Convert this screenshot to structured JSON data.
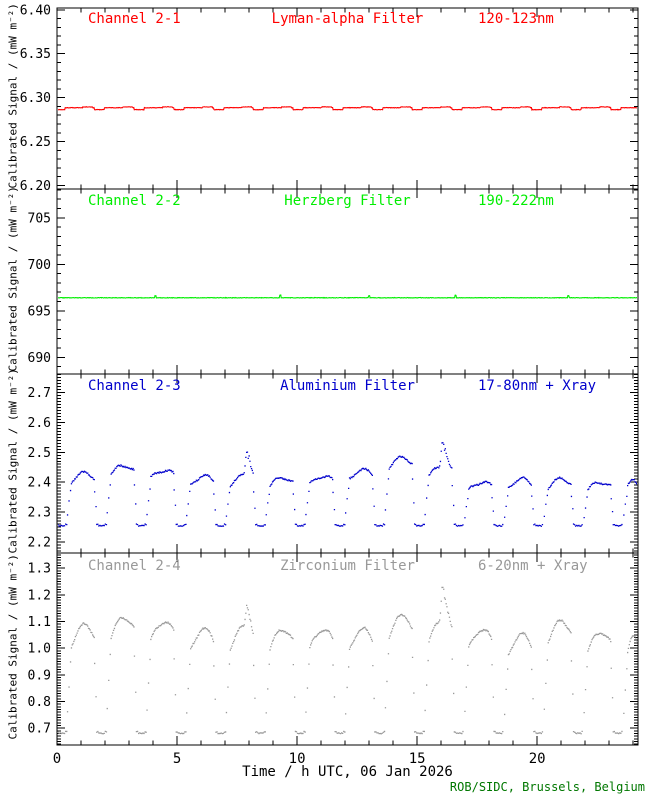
{
  "figure": {
    "background": "#ffffff",
    "axis_color": "#000000"
  },
  "xaxis": {
    "label": "Time / h UTC, 06 Jan 2026",
    "lim": [
      0,
      24.2
    ],
    "ticks": [
      0,
      5,
      10,
      15,
      20
    ],
    "minor_step": 1
  },
  "footer": {
    "text": "ROB/SIDC, Brussels, Belgium",
    "color": "#007700"
  },
  "chart_data": [
    {
      "type": "line",
      "channel": "Channel 2-1",
      "filter": "Lyman-alpha Filter",
      "range": "120-123nm",
      "color": "#ff0000",
      "ylabel": "Calibrated Signal / (mW m⁻²)",
      "ylim": [
        6.196,
        6.402
      ],
      "yticks": [
        6.2,
        6.25,
        6.3,
        6.35,
        6.4
      ],
      "ytick_decimals": 2,
      "yminor_step": 0.01,
      "series": {
        "seed": 11,
        "base": 6.2885,
        "noise": 0.0005,
        "eclipse_first": 0.2,
        "eclipse_period": 1.655,
        "bump": 0.0009,
        "bump_window": [
          -0.78,
          -0.36
        ],
        "dip": 0.0022,
        "dip_window": [
          -0.3,
          0.12
        ],
        "spikes": []
      }
    },
    {
      "type": "line",
      "channel": "Channel 2-2",
      "filter": "Herzberg Filter",
      "range": "190-222nm",
      "color": "#00ee00",
      "ylabel": "Calibrated Signal / (mW m⁻²)",
      "ylim": [
        688.2,
        708.1
      ],
      "yticks": [
        690,
        695,
        700,
        705
      ],
      "ytick_decimals": 0,
      "yminor_step": 1,
      "series": {
        "seed": 22,
        "base": 696.4,
        "noise": 0.05,
        "spikes": [
          {
            "t": 4.1,
            "amp": 0.22
          },
          {
            "t": 9.3,
            "amp": 0.28
          },
          {
            "t": 13.0,
            "amp": 0.22
          },
          {
            "t": 16.6,
            "amp": 0.26
          },
          {
            "t": 21.3,
            "amp": 0.22
          }
        ]
      }
    },
    {
      "type": "scatter",
      "channel": "Channel 2-3",
      "filter": "Aluminium Filter",
      "range": "17-80nm + Xray",
      "color": "#0000cc",
      "ylabel": "Calibrated Signal / (mW m⁻²)",
      "ylim": [
        2.163,
        2.762
      ],
      "yticks": [
        2.2,
        2.3,
        2.4,
        2.5,
        2.6,
        2.7
      ],
      "ytick_decimals": 1,
      "yminor_step": 0.01,
      "series": {
        "seed": 33,
        "low": 2.254,
        "eclipse_first": 0.2,
        "eclipse_period": 1.655,
        "plateaus": [
          2.43,
          2.455,
          2.44,
          2.42,
          2.42,
          2.415,
          2.42,
          2.44,
          2.48,
          2.45,
          2.4,
          2.41,
          2.41,
          2.4,
          2.41
        ],
        "arch_depth": 0.06,
        "wiggle": 0.006,
        "jitter": 0.005,
        "flares": [
          {
            "t": 7.9,
            "peak": 2.5
          },
          {
            "t": 16.05,
            "peak": 2.53
          }
        ]
      }
    },
    {
      "type": "scatter",
      "channel": "Channel 2-4",
      "filter": "Zirconium Filter",
      "range": "6-20nm + Xray",
      "color": "#999999",
      "ylabel": "Calibrated Signal / (mW m⁻²)",
      "ylim": [
        0.637,
        1.357
      ],
      "yticks": [
        0.7,
        0.8,
        0.9,
        1.0,
        1.1,
        1.2,
        1.3
      ],
      "ytick_decimals": 1,
      "yminor_step": 0.01,
      "series": {
        "seed": 44,
        "low": 0.681,
        "eclipse_first": 0.2,
        "eclipse_period": 1.655,
        "plateaus": [
          1.085,
          1.115,
          1.1,
          1.07,
          1.075,
          1.07,
          1.07,
          1.07,
          1.12,
          1.1,
          1.07,
          1.05,
          1.1,
          1.06,
          1.05
        ],
        "arch_depth": 0.16,
        "wiggle": 0.008,
        "jitter": 0.006,
        "flares": [
          {
            "t": 7.9,
            "peak": 1.16
          },
          {
            "t": 16.05,
            "peak": 1.23
          }
        ]
      }
    }
  ]
}
